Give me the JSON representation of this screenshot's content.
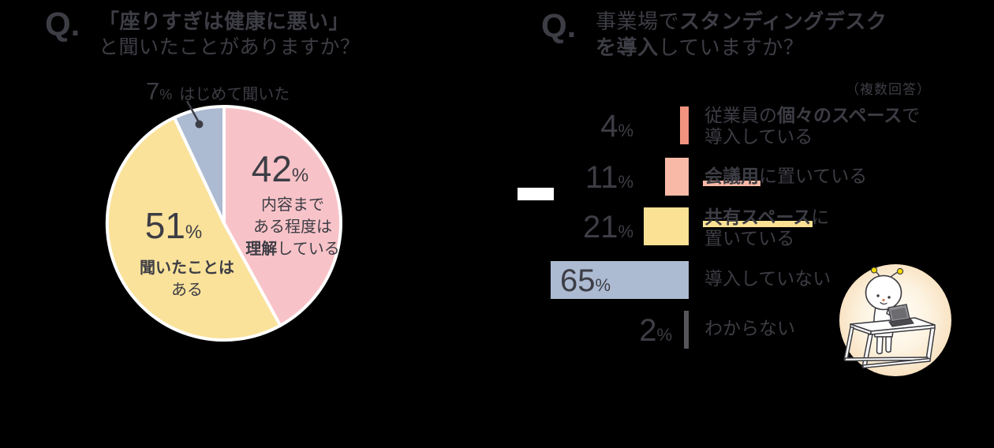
{
  "background_color": "#000000",
  "text_color": "#3d3d45",
  "chart_data": [
    {
      "type": "pie",
      "title": "「座りすぎは健康に悪い」と聞いたことがありますか？",
      "labels": [
        "内容まである程度は理解している",
        "聞いたことはある",
        "はじめて聞いた"
      ],
      "values": [
        42,
        51,
        7
      ],
      "unit": "%",
      "colors": [
        "#F8C3C8",
        "#FAE29A",
        "#ACBAD2"
      ],
      "start_angle_deg": 0,
      "direction": "clockwise",
      "slice_border_color": "#ffffff"
    },
    {
      "type": "bar",
      "title": "事業場でスタンディングデスクを導入していますか？",
      "note": "（複数回答）",
      "categories": [
        "従業員の個々のスペースで導入している",
        "会議用に置いている",
        "共有スペースに置いている",
        "導入していない",
        "わからない"
      ],
      "values": [
        4,
        11,
        21,
        65,
        2
      ],
      "unit": "%",
      "colors": [
        "#F2937F",
        "#F8B9A6",
        "#FBE193",
        "#ACBAD2",
        "#56565A"
      ],
      "orientation": "horizontal",
      "bars_right_aligned": true
    }
  ],
  "left_chart": {
    "q_label": "Q.",
    "title_bold": "「座りすぎは健康に悪い」",
    "title_rest": "と聞いたことがありますか？",
    "callout": {
      "pct": "7",
      "unit": "%",
      "label": "はじめて聞いた"
    },
    "slice_pink": {
      "pct": "42",
      "unit": "%",
      "line1": "内容まで",
      "line2": "ある程度は",
      "line3_bold": "理解",
      "line3_rest": "している"
    },
    "slice_yellow": {
      "pct": "51",
      "unit": "%",
      "line1_bold": "聞いたことは",
      "line2": "ある"
    }
  },
  "right_chart": {
    "q_label": "Q.",
    "title_pre": "事業場で",
    "title_bold1": "スタンディングデスク",
    "title_bold2": "を導入",
    "title_rest": "していますか？",
    "note": "（複数回答）",
    "rows": [
      {
        "pct": "4",
        "unit": "%",
        "pre": "従業員の",
        "bold": "個々のスペース",
        "post": "で",
        "line2": "導入している"
      },
      {
        "pct": "11",
        "unit": "%",
        "pre": "",
        "bold": "会議用",
        "post": "に置いている",
        "line2": ""
      },
      {
        "pct": "21",
        "unit": "%",
        "pre": "",
        "bold": "共有スペース",
        "post": "に",
        "line2": "置いている"
      },
      {
        "pct": "65",
        "unit": "%",
        "label": "導入していない"
      },
      {
        "pct": "2",
        "unit": "%",
        "label": "わからない"
      }
    ]
  }
}
